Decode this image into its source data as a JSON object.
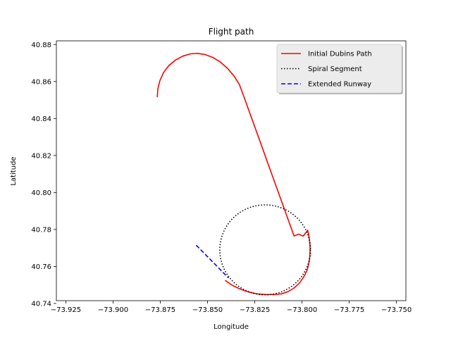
{
  "chart_data": {
    "type": "line",
    "title": "Flight path",
    "xlabel": "Longitude",
    "ylabel": "Latitude",
    "xlim": [
      -73.93,
      -73.745
    ],
    "ylim": [
      40.7415,
      40.882
    ],
    "xticks": [
      -73.925,
      -73.9,
      -73.875,
      -73.85,
      -73.825,
      -73.8,
      -73.775,
      -73.75
    ],
    "xtick_labels": [
      "−73.925",
      "−73.900",
      "−73.875",
      "−73.850",
      "−73.825",
      "−73.800",
      "−73.775",
      "−73.750"
    ],
    "yticks": [
      40.74,
      40.76,
      40.78,
      40.8,
      40.82,
      40.84,
      40.86,
      40.88
    ],
    "ytick_labels": [
      "40.74",
      "40.76",
      "40.78",
      "40.80",
      "40.82",
      "40.84",
      "40.86",
      "40.88"
    ],
    "legend_position": "top-right",
    "grid": false,
    "series": [
      {
        "name": "Initial Dubins Path",
        "color": "#ff0000",
        "style": "solid",
        "x": [
          -73.8766,
          -73.8763,
          -73.8752,
          -73.8733,
          -73.8706,
          -73.8671,
          -73.8632,
          -73.859,
          -73.8552,
          -73.8514,
          -73.8474,
          -73.8434,
          -73.8395,
          -73.8359,
          -73.8331,
          -73.8306,
          -73.8282,
          -73.8258,
          -73.8234,
          -73.821,
          -73.8186,
          -73.8162,
          -73.8138,
          -73.8114,
          -73.809,
          -73.8066,
          -73.8042,
          -73.8018,
          -73.7994,
          -73.797,
          -73.7964,
          -73.796,
          -73.7957,
          -73.7958,
          -73.7963,
          -73.7973,
          -73.799,
          -73.8012,
          -73.804,
          -73.8072,
          -73.8109,
          -73.8149,
          -73.8193,
          -73.8238,
          -73.8283,
          -73.8327,
          -73.8369,
          -73.8407
        ],
        "y": [
          40.8515,
          40.856,
          40.8605,
          40.8648,
          40.8685,
          40.8715,
          40.8737,
          40.875,
          40.8752,
          40.8746,
          40.8731,
          40.8707,
          40.8672,
          40.8629,
          40.8583,
          40.8514,
          40.8446,
          40.8378,
          40.831,
          40.8242,
          40.8173,
          40.8105,
          40.8037,
          40.7969,
          40.7901,
          40.7833,
          40.7765,
          40.7775,
          40.7764,
          40.7795,
          40.777,
          40.774,
          40.77,
          40.766,
          40.762,
          40.758,
          40.7545,
          40.7512,
          40.7485,
          40.7465,
          40.7452,
          40.7448,
          40.7448,
          40.7452,
          40.7462,
          40.7478,
          40.7498,
          40.7525
        ]
      },
      {
        "name": "Spiral Segment",
        "color": "#000000",
        "style": "dotted",
        "center": [
          -73.8195,
          40.769
        ],
        "radius_x": 0.024,
        "radius_y": 0.0243
      },
      {
        "name": "Extended Runway",
        "color": "#0000ff",
        "style": "dashed",
        "x": [
          -73.856,
          -73.8389
        ],
        "y": [
          40.7715,
          40.7538
        ]
      }
    ]
  }
}
